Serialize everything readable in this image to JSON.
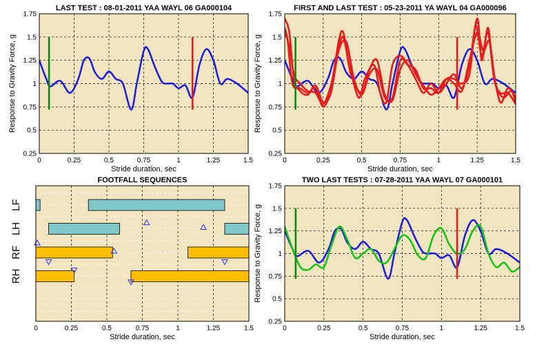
{
  "colors": {
    "plot_bg": "#f2e6c0",
    "blue": "#1f1fdd",
    "red": "#e81a1a",
    "green": "#16c216",
    "marker_green": "#0f8a0f",
    "teal_bar": "#7fc6c6",
    "orange_bar": "#ffbf00",
    "triangle": "#2b2bff"
  },
  "chart_data": [
    {
      "type": "line",
      "title": "LAST TEST : 08-01-2011 YAA WAYL 06 GA000104",
      "xlabel": "Stride duration, sec",
      "ylabel": "Response to Gravity Force, g",
      "xlim": [
        0,
        1.5
      ],
      "ylim": [
        0.25,
        1.75
      ],
      "xticks": [
        "0",
        "0.25",
        "0.5",
        "0.75",
        "1",
        "1.25",
        "1.5"
      ],
      "yticks": [
        "0.25",
        "0.5",
        "0.75",
        "1",
        "1.25",
        "1.5",
        "1.75"
      ],
      "grid": true,
      "markers": [
        {
          "x": 0.07,
          "y0": 0.72,
          "y1": 1.5,
          "color": "green"
        },
        {
          "x": 1.1,
          "y0": 0.72,
          "y1": 1.5,
          "color": "red"
        }
      ],
      "series": [
        {
          "color": "blue",
          "x": [
            0,
            0.05,
            0.08,
            0.15,
            0.22,
            0.28,
            0.32,
            0.36,
            0.4,
            0.45,
            0.5,
            0.55,
            0.6,
            0.66,
            0.7,
            0.75,
            0.78,
            0.83,
            0.88,
            0.92,
            0.96,
            1.0,
            1.05,
            1.1,
            1.15,
            1.2,
            1.25,
            1.3,
            1.35,
            1.42,
            1.5
          ],
          "y": [
            1.25,
            1.05,
            0.97,
            1.03,
            0.9,
            1.05,
            1.25,
            1.27,
            1.12,
            1.05,
            1.13,
            1.05,
            1.0,
            0.72,
            1.0,
            1.35,
            1.37,
            1.18,
            1.02,
            1.0,
            1.0,
            0.95,
            0.98,
            0.85,
            1.2,
            1.37,
            1.25,
            1.0,
            1.05,
            1.0,
            0.9
          ]
        }
      ]
    },
    {
      "type": "line",
      "title": "FIRST AND LAST TEST : 05-23-2011 YA WAYL 04 GA000096",
      "xlabel": "Stride duration, sec",
      "ylabel": "Response to Gravity Force, g",
      "xlim": [
        0,
        1.5
      ],
      "ylim": [
        0.25,
        1.75
      ],
      "xticks": [
        "0",
        "0.25",
        "0.5",
        "0.75",
        "1",
        "1.25",
        "1.5"
      ],
      "yticks": [
        "0.25",
        "0.5",
        "0.75",
        "1",
        "1.25",
        "1.5",
        "1.75"
      ],
      "grid": true,
      "markers": [
        {
          "x": 0.07,
          "y0": 0.72,
          "y1": 1.5,
          "color": "green"
        },
        {
          "x": 1.12,
          "y0": 0.72,
          "y1": 1.5,
          "color": "red"
        }
      ],
      "series": [
        {
          "color": "blue",
          "x": [
            0,
            0.05,
            0.08,
            0.15,
            0.22,
            0.28,
            0.32,
            0.36,
            0.4,
            0.45,
            0.5,
            0.55,
            0.6,
            0.66,
            0.7,
            0.75,
            0.78,
            0.83,
            0.88,
            0.92,
            0.96,
            1.0,
            1.05,
            1.1,
            1.15,
            1.2,
            1.25,
            1.3,
            1.35,
            1.42,
            1.5
          ],
          "y": [
            1.25,
            1.05,
            0.97,
            1.03,
            0.9,
            1.05,
            1.25,
            1.27,
            1.12,
            1.05,
            1.13,
            1.05,
            1.0,
            0.72,
            1.0,
            1.35,
            1.37,
            1.18,
            1.02,
            1.0,
            1.0,
            0.95,
            0.98,
            0.85,
            1.2,
            1.37,
            1.25,
            1.0,
            1.05,
            1.0,
            0.9
          ]
        },
        {
          "color": "red",
          "x": [
            0,
            0.02,
            0.05,
            0.1,
            0.15,
            0.2,
            0.25,
            0.3,
            0.35,
            0.38,
            0.42,
            0.48,
            0.52,
            0.58,
            0.62,
            0.66,
            0.7,
            0.75,
            0.8,
            0.85,
            0.9,
            0.95,
            1.0,
            1.05,
            1.1,
            1.15,
            1.2,
            1.25,
            1.28,
            1.32,
            1.35,
            1.4,
            1.45,
            1.5
          ],
          "y": [
            1.6,
            1.45,
            1.0,
            0.95,
            0.9,
            0.95,
            0.75,
            0.95,
            1.45,
            1.55,
            1.2,
            0.85,
            1.05,
            1.2,
            0.9,
            0.8,
            1.2,
            1.3,
            1.2,
            1.05,
            0.9,
            1.0,
            0.9,
            1.0,
            1.1,
            0.95,
            1.2,
            1.7,
            1.25,
            1.6,
            1.2,
            0.8,
            0.95,
            0.85
          ]
        },
        {
          "color": "red",
          "x": [
            0,
            0.03,
            0.06,
            0.1,
            0.15,
            0.2,
            0.25,
            0.3,
            0.35,
            0.4,
            0.45,
            0.5,
            0.55,
            0.6,
            0.65,
            0.7,
            0.75,
            0.8,
            0.85,
            0.9,
            0.95,
            1.0,
            1.05,
            1.1,
            1.15,
            1.2,
            1.24,
            1.28,
            1.32,
            1.36,
            1.4,
            1.45,
            1.5
          ],
          "y": [
            1.7,
            1.55,
            1.05,
            0.92,
            0.88,
            0.98,
            0.8,
            0.9,
            1.35,
            1.45,
            1.05,
            0.88,
            1.1,
            1.15,
            0.85,
            0.85,
            1.25,
            1.2,
            1.15,
            0.95,
            0.95,
            0.9,
            1.05,
            1.05,
            1.0,
            1.1,
            1.62,
            1.3,
            1.55,
            1.05,
            0.9,
            0.9,
            0.78
          ]
        },
        {
          "color": "red",
          "x": [
            0,
            0.03,
            0.06,
            0.1,
            0.15,
            0.2,
            0.25,
            0.3,
            0.34,
            0.38,
            0.43,
            0.5,
            0.55,
            0.6,
            0.65,
            0.7,
            0.75,
            0.8,
            0.85,
            0.9,
            0.95,
            1.0,
            1.05,
            1.1,
            1.15,
            1.2,
            1.25,
            1.29,
            1.33,
            1.37,
            1.42,
            1.47,
            1.5
          ],
          "y": [
            1.55,
            1.4,
            1.1,
            1.0,
            0.92,
            0.9,
            0.78,
            0.98,
            1.3,
            1.5,
            1.1,
            0.9,
            1.15,
            1.25,
            0.88,
            0.82,
            1.15,
            1.25,
            1.1,
            0.98,
            0.88,
            0.95,
            1.05,
            1.0,
            0.92,
            1.25,
            1.55,
            1.35,
            1.45,
            1.0,
            0.85,
            0.92,
            0.8
          ]
        }
      ]
    },
    {
      "type": "bar",
      "title": "FOOTFALL SEQUENCES",
      "xlabel": "Stride duration, sec",
      "xlim": [
        0,
        1.5
      ],
      "xticks": [
        "0",
        "0.25",
        "0.5",
        "0.75",
        "1",
        "1.25",
        "1.5"
      ],
      "categories": [
        "LF",
        "LH",
        "RF",
        "RH"
      ],
      "grid": true,
      "intervals": [
        {
          "leg": "LF",
          "start": 0.0,
          "end": 0.03,
          "color": "teal_bar"
        },
        {
          "leg": "LF",
          "start": 0.37,
          "end": 1.33,
          "color": "teal_bar"
        },
        {
          "leg": "LH",
          "start": 0.09,
          "end": 0.59,
          "color": "teal_bar"
        },
        {
          "leg": "LH",
          "start": 1.33,
          "end": 1.5,
          "color": "teal_bar"
        },
        {
          "leg": "RF",
          "start": 0.0,
          "end": 0.54,
          "color": "orange_bar"
        },
        {
          "leg": "RF",
          "start": 1.07,
          "end": 1.5,
          "color": "orange_bar"
        },
        {
          "leg": "RH",
          "start": 0.0,
          "end": 0.27,
          "color": "orange_bar"
        },
        {
          "leg": "RH",
          "start": 0.67,
          "end": 1.5,
          "color": "orange_bar"
        }
      ],
      "triangles": [
        {
          "x": 0.01,
          "row": 1.6,
          "dir": "up"
        },
        {
          "x": 0.78,
          "row": 0.75,
          "dir": "up"
        },
        {
          "x": 1.18,
          "row": 0.95,
          "dir": "up"
        },
        {
          "x": 0.55,
          "row": 1.95,
          "dir": "up"
        },
        {
          "x": 0.09,
          "row": 2.4,
          "dir": "down"
        },
        {
          "x": 0.27,
          "row": 2.75,
          "dir": "down"
        },
        {
          "x": 1.33,
          "row": 2.4,
          "dir": "down"
        },
        {
          "x": 0.67,
          "row": 3.25,
          "dir": "down"
        }
      ]
    },
    {
      "type": "line",
      "title": "TWO LAST TESTS : 07-28-2011 YAA WAYL 07 GA000101",
      "xlabel": "Stride duration, sec",
      "ylabel": "Response to Gravity Force, g",
      "xlim": [
        0,
        1.5
      ],
      "ylim": [
        0.25,
        1.75
      ],
      "xticks": [
        "0",
        "0.25",
        "0.5",
        "0.75",
        "1",
        "1.25",
        "1.5"
      ],
      "yticks": [
        "0.25",
        "0.5",
        "0.75",
        "1",
        "1.25",
        "1.5",
        "1.75"
      ],
      "grid": true,
      "markers": [
        {
          "x": 0.07,
          "y0": 0.72,
          "y1": 1.5,
          "color": "green"
        },
        {
          "x": 1.1,
          "y0": 0.72,
          "y1": 1.5,
          "color": "red"
        }
      ],
      "series": [
        {
          "color": "blue",
          "x": [
            0,
            0.05,
            0.08,
            0.15,
            0.22,
            0.28,
            0.32,
            0.36,
            0.4,
            0.45,
            0.5,
            0.55,
            0.6,
            0.66,
            0.7,
            0.75,
            0.78,
            0.83,
            0.88,
            0.92,
            0.96,
            1.0,
            1.05,
            1.1,
            1.15,
            1.2,
            1.25,
            1.3,
            1.35,
            1.42,
            1.5
          ],
          "y": [
            1.25,
            1.05,
            0.97,
            1.03,
            0.9,
            1.05,
            1.25,
            1.27,
            1.12,
            1.05,
            1.13,
            1.05,
            1.0,
            0.72,
            1.0,
            1.35,
            1.37,
            1.18,
            1.02,
            1.0,
            1.0,
            0.95,
            0.98,
            0.85,
            1.2,
            1.37,
            1.25,
            1.0,
            1.05,
            1.0,
            0.9
          ]
        },
        {
          "color": "green",
          "x": [
            0,
            0.05,
            0.1,
            0.15,
            0.2,
            0.25,
            0.3,
            0.35,
            0.4,
            0.45,
            0.5,
            0.55,
            0.6,
            0.65,
            0.7,
            0.75,
            0.8,
            0.85,
            0.9,
            0.95,
            1.0,
            1.05,
            1.1,
            1.15,
            1.2,
            1.25,
            1.3,
            1.35,
            1.4,
            1.45,
            1.5
          ],
          "y": [
            1.3,
            1.05,
            0.85,
            0.82,
            0.88,
            0.85,
            1.1,
            1.3,
            1.15,
            0.95,
            1.0,
            1.05,
            0.92,
            0.9,
            1.05,
            1.2,
            1.15,
            0.98,
            0.95,
            1.2,
            1.28,
            1.1,
            1.0,
            1.05,
            1.25,
            1.3,
            1.0,
            0.85,
            0.9,
            0.8,
            0.85
          ]
        }
      ]
    }
  ]
}
